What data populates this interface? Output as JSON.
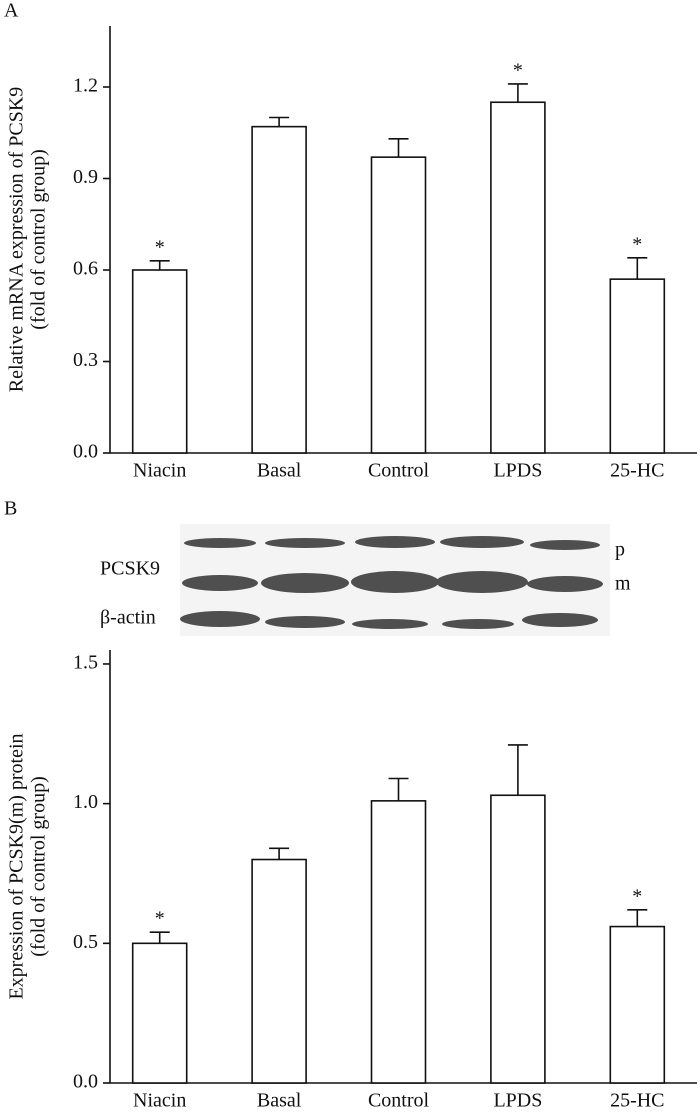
{
  "chart_data": [
    {
      "type": "bar",
      "panel_label": "A",
      "y_label": [
        "Relative mRNA expression of PCSK9",
        "(fold of control group)"
      ],
      "categories": [
        "Niacin",
        "Basal",
        "Control",
        "LPDS",
        "25-HC"
      ],
      "values": [
        0.6,
        1.07,
        0.97,
        1.15,
        0.57
      ],
      "errors": [
        0.03,
        0.03,
        0.06,
        0.06,
        0.07
      ],
      "significance": [
        "*",
        null,
        null,
        "*",
        "*"
      ],
      "color": "#ffffff",
      "ylim": [
        0,
        1.4
      ],
      "yticks": [
        {
          "value": 0,
          "label": "0.0"
        },
        0.3,
        0.6,
        0.9,
        1.2
      ]
    },
    {
      "type": "bar",
      "panel_label": "B",
      "blot_labels": {
        "protein": "PCSK9",
        "precursor": "p",
        "mature": "m",
        "loading": "β-actin"
      },
      "y_label": [
        "Expression of PCSK9(m) protein",
        "(fold of control group)"
      ],
      "categories": [
        "Niacin",
        "Basal",
        "Control",
        "LPDS",
        "25-HC"
      ],
      "values": [
        0.5,
        0.8,
        1.01,
        1.03,
        0.56
      ],
      "errors": [
        0.04,
        0.04,
        0.08,
        0.18,
        0.06
      ],
      "significance": [
        "*",
        null,
        null,
        null,
        "*"
      ],
      "color": "#ffffff",
      "ylim": [
        0,
        1.55
      ],
      "yticks": [
        {
          "value": 0,
          "label": "0.0"
        },
        0.5,
        {
          "value": 1,
          "label": "1.0"
        },
        1.5
      ]
    }
  ]
}
